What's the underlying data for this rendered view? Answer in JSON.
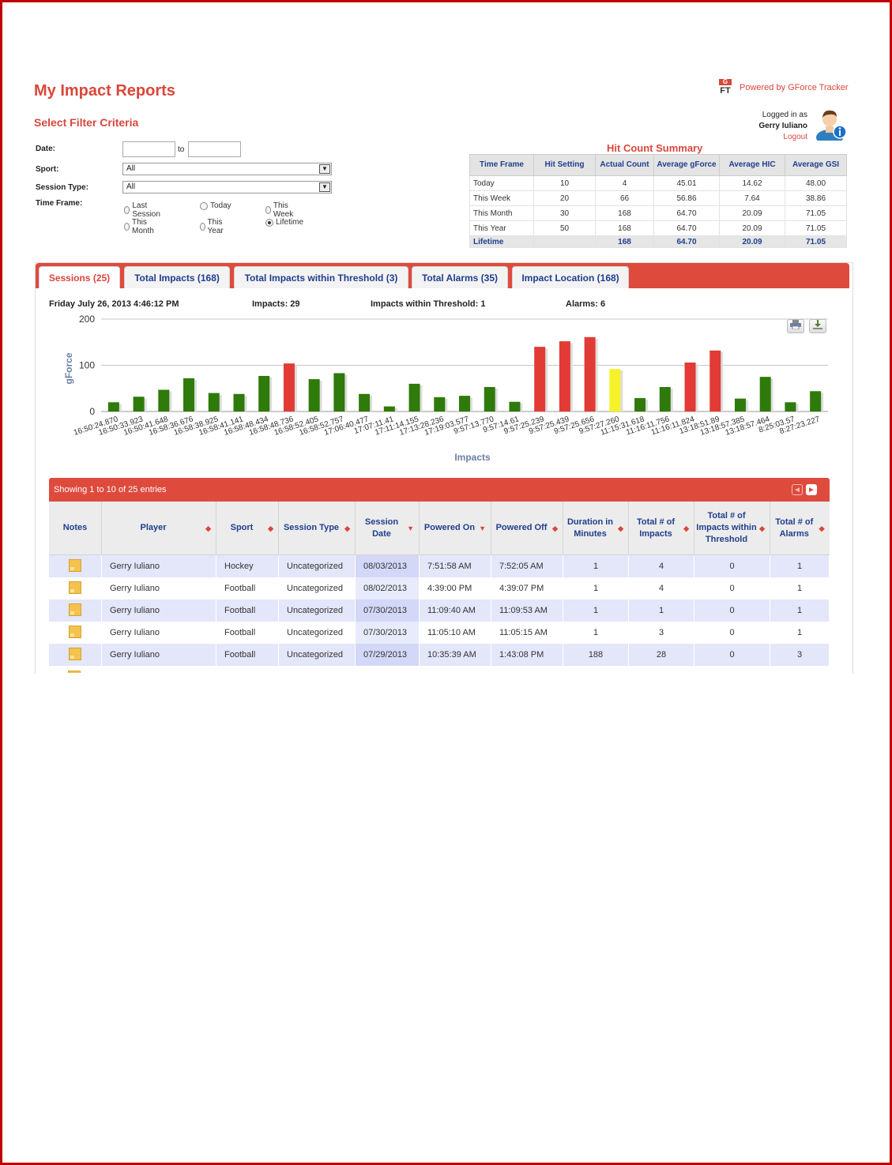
{
  "page": {
    "title": "My Impact Reports",
    "filter_title": "Select Filter Criteria",
    "powered_by": "Powered by GForce Tracker",
    "logo_g": "G",
    "logo_ft": "FT"
  },
  "user": {
    "logged_in_as": "Logged in as",
    "name": "Gerry Iuliano",
    "logout": "Logout"
  },
  "filters": {
    "date_label": "Date:",
    "date_to": "to",
    "date_from_value": "",
    "date_to_value": "",
    "sport_label": "Sport:",
    "sport_value": "All",
    "session_type_label": "Session Type:",
    "session_type_value": "All",
    "time_frame_label": "Time Frame:",
    "time_frames": [
      {
        "label": "Last Session",
        "checked": false
      },
      {
        "label": "Today",
        "checked": false
      },
      {
        "label": "This Week",
        "checked": false
      },
      {
        "label": "This Month",
        "checked": false
      },
      {
        "label": "This Year",
        "checked": false
      },
      {
        "label": "Lifetime",
        "checked": true
      }
    ]
  },
  "hit_count": {
    "title": "Hit Count Summary",
    "headers": [
      "Time Frame",
      "Hit Setting",
      "Actual Count",
      "Average gForce",
      "Average HIC",
      "Average GSI"
    ],
    "rows": [
      [
        "Today",
        "10",
        "4",
        "45.01",
        "14.62",
        "48.00"
      ],
      [
        "This Week",
        "20",
        "66",
        "56.86",
        "7.64",
        "38.86"
      ],
      [
        "This Month",
        "30",
        "168",
        "64.70",
        "20.09",
        "71.05"
      ],
      [
        "This Year",
        "50",
        "168",
        "64.70",
        "20.09",
        "71.05"
      ]
    ],
    "lifetime": [
      "Lifetime",
      "",
      "168",
      "64.70",
      "20.09",
      "71.05"
    ]
  },
  "tabs": [
    {
      "label": "Sessions (25)",
      "active": true
    },
    {
      "label": "Total Impacts (168)",
      "active": false
    },
    {
      "label": "Total Impacts within Threshold (3)",
      "active": false
    },
    {
      "label": "Total Alarms (35)",
      "active": false
    },
    {
      "label": "Impact Location (168)",
      "active": false
    }
  ],
  "session": {
    "datetime": "Friday July 26, 2013 4:46:12 PM",
    "impacts": "Impacts: 29",
    "within": "Impacts within Threshold: 1",
    "alarms": "Alarms: 6"
  },
  "colors": {
    "accent": "#de4b3d",
    "green": "#2e7a0a",
    "red": "#e23b35",
    "yellow": "#f5f229",
    "label_blue": "#1f3e8c"
  },
  "chart_data": {
    "type": "bar",
    "ylabel": "gForce",
    "xlabel": "Impacts",
    "ylim": [
      0,
      200
    ],
    "yticks": [
      0,
      100,
      200
    ],
    "grid": true,
    "categories": [
      "16:50:24.870",
      "16:50:33.923",
      "16:50:41.648",
      "16:58:36.676",
      "16:58:38.925",
      "16:58:41.141",
      "16:58:48.434",
      "16:58:48.736",
      "16:58:52.405",
      "16:58:52.757",
      "17:06:40.477",
      "17:07:11.41",
      "17:11:14.155",
      "17:13:28.236",
      "17:19:03.577",
      "9:57:13.770",
      "9:57:14.61",
      "9:57:25.239",
      "9:57:25.439",
      "9:57:25.656",
      "9:57:27.260",
      "11:15:31.618",
      "11:16:11.756",
      "11:16:11.824",
      "13:18:51.89",
      "13:18:57.385",
      "13:18:57.464",
      "8:25:03.57",
      "8:27:23.227"
    ],
    "values": [
      20,
      32,
      47,
      72,
      40,
      38,
      77,
      104,
      70,
      83,
      38,
      11,
      60,
      31,
      34,
      53,
      21,
      140,
      152,
      161,
      92,
      29,
      53,
      106,
      132,
      28,
      75,
      20,
      44
    ],
    "status": [
      "g",
      "g",
      "g",
      "g",
      "g",
      "g",
      "g",
      "r",
      "g",
      "g",
      "g",
      "g",
      "g",
      "g",
      "g",
      "g",
      "g",
      "r",
      "r",
      "r",
      "y",
      "g",
      "g",
      "r",
      "r",
      "g",
      "g",
      "g",
      "g"
    ]
  },
  "icons": {
    "print": "print-icon",
    "download": "download-icon",
    "prev": "prev-page-icon",
    "next": "next-page-icon",
    "note": "note-icon"
  },
  "grid": {
    "info": "Showing 1 to 10 of 25 entries",
    "headers": [
      "Notes",
      "Player",
      "Sport",
      "Session Type",
      "Session Date",
      "Powered On",
      "Powered Off",
      "Duration in Minutes",
      "Total # of Impacts",
      "Total # of Impacts within Threshold",
      "Total # of Alarms"
    ],
    "rows": [
      [
        "Gerry Iuliano",
        "Hockey",
        "Uncategorized",
        "08/03/2013",
        "7:51:58 AM",
        "7:52:05 AM",
        "1",
        "4",
        "0",
        "1"
      ],
      [
        "Gerry Iuliano",
        "Football",
        "Uncategorized",
        "08/02/2013",
        "4:39:00 PM",
        "4:39:07 PM",
        "1",
        "4",
        "0",
        "1"
      ],
      [
        "Gerry Iuliano",
        "Football",
        "Uncategorized",
        "07/30/2013",
        "11:09:40 AM",
        "11:09:53 AM",
        "1",
        "1",
        "0",
        "1"
      ],
      [
        "Gerry Iuliano",
        "Football",
        "Uncategorized",
        "07/30/2013",
        "11:05:10 AM",
        "11:05:15 AM",
        "1",
        "3",
        "0",
        "1"
      ],
      [
        "Gerry Iuliano",
        "Football",
        "Uncategorized",
        "07/29/2013",
        "10:35:39 AM",
        "1:43:08 PM",
        "188",
        "28",
        "0",
        "3"
      ]
    ]
  }
}
